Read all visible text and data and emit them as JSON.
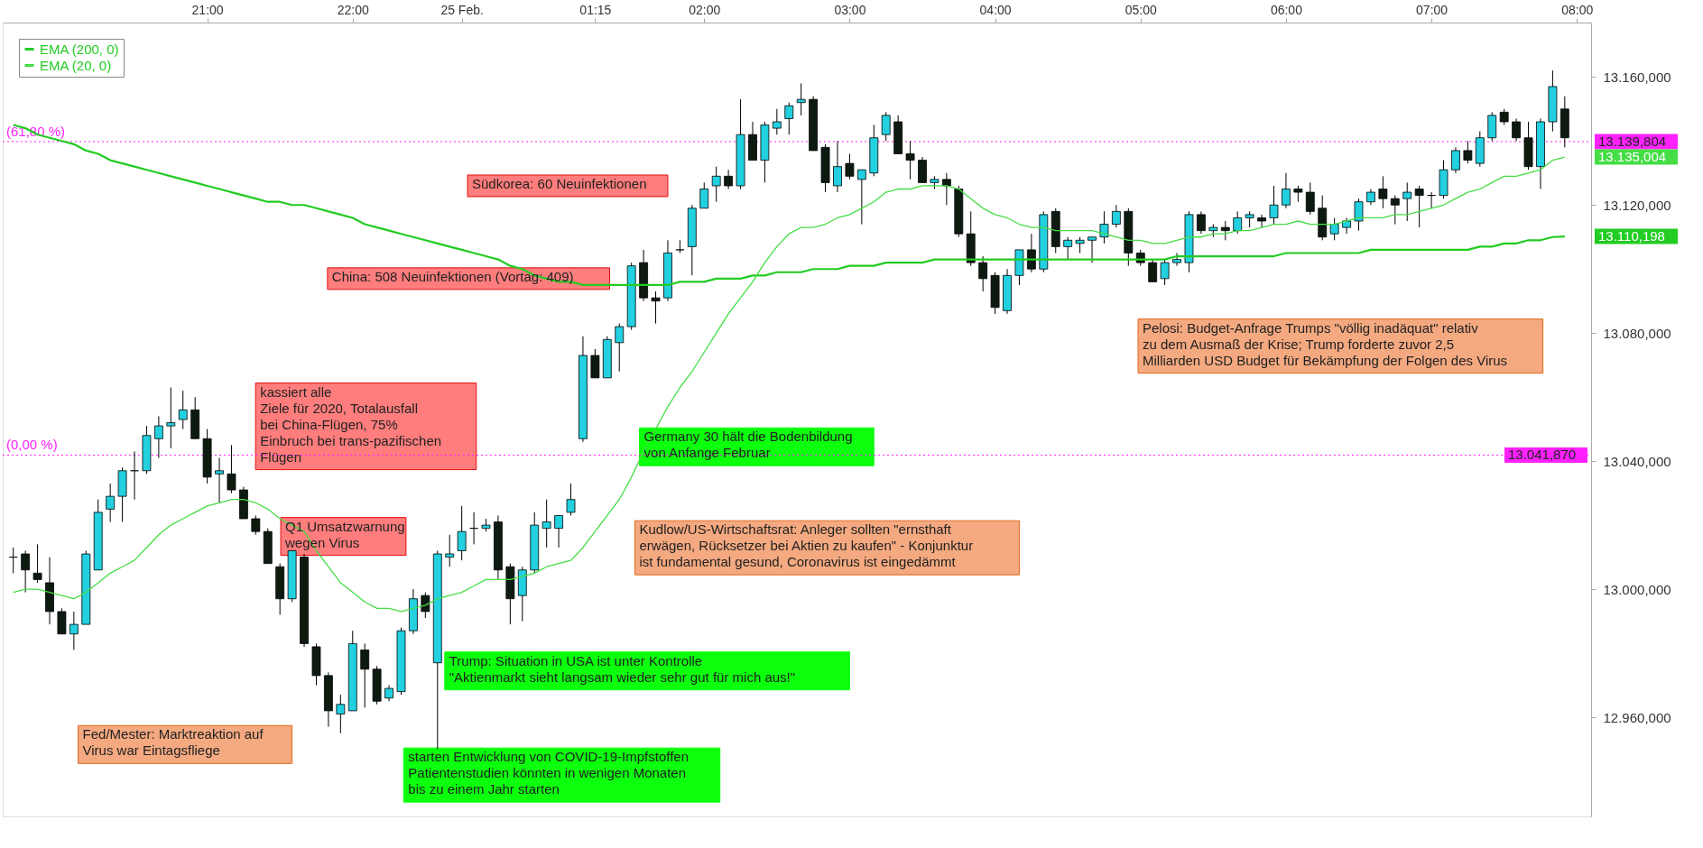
{
  "chart_data": {
    "type": "candlestick",
    "categories": [
      null,
      null,
      null,
      null,
      null,
      null,
      null,
      null,
      null,
      null,
      null,
      null,
      null,
      null,
      null,
      null,
      "21:00",
      null,
      null,
      null,
      null,
      null,
      null,
      null,
      null,
      null,
      null,
      null,
      "22:00",
      null,
      null,
      null,
      null,
      null,
      null,
      null,
      null,
      "25 Feb.",
      null,
      null,
      null,
      null,
      null,
      null,
      null,
      null,
      null,
      null,
      "01:15",
      null,
      null,
      null,
      null,
      null,
      null,
      null,
      null,
      "02:00",
      null,
      null,
      null,
      null,
      null,
      null,
      null,
      null,
      null,
      null,
      null,
      "03:00",
      null,
      null,
      null,
      null,
      null,
      null,
      null,
      null,
      null,
      null,
      null,
      "04:00",
      null,
      null,
      null,
      null,
      null,
      null,
      null,
      null,
      null,
      null,
      null,
      "05:00",
      null,
      null,
      null,
      null,
      null,
      null,
      null,
      null,
      null,
      null,
      null,
      "06:00",
      null,
      null,
      null,
      null,
      null,
      null,
      null,
      null,
      null,
      null,
      null,
      "07:00",
      null,
      null,
      null,
      null,
      null,
      null,
      null,
      null,
      null,
      null,
      null,
      "08:00"
    ],
    "ohlc": [
      [
        13010,
        13013,
        13005,
        13010
      ],
      [
        13011,
        13012,
        12999,
        13006
      ],
      [
        13005,
        13014,
        13002,
        13003
      ],
      [
        13002,
        13010,
        12989,
        12993
      ],
      [
        12993,
        12994,
        12986,
        12986
      ],
      [
        12986,
        12993,
        12981,
        12989
      ],
      [
        12989,
        13012,
        12989,
        13011
      ],
      [
        13006,
        13028,
        13006,
        13024
      ],
      [
        13025,
        13033,
        13021,
        13029
      ],
      [
        13029,
        13038,
        13021,
        13037
      ],
      [
        13037,
        13043,
        13028,
        13037
      ],
      [
        13037,
        13051,
        13036,
        13048
      ],
      [
        13047,
        13054,
        13041,
        13051
      ],
      [
        13051,
        13063,
        13044,
        13052
      ],
      [
        13053,
        13062,
        13050,
        13056
      ],
      [
        13056,
        13060,
        13047,
        13047
      ],
      [
        13047,
        13050,
        13033,
        13035
      ],
      [
        13036,
        13041,
        13027,
        13037
      ],
      [
        13036,
        13045,
        13030,
        13031
      ],
      [
        13031,
        13032,
        13022,
        13022
      ],
      [
        13022,
        13023,
        13017,
        13018
      ],
      [
        13018,
        13019,
        13008,
        13008
      ],
      [
        13007,
        13008,
        12992,
        12997
      ],
      [
        12997,
        13012,
        12996,
        13012
      ],
      [
        13010,
        13011,
        12982,
        12983
      ],
      [
        12982,
        12983,
        12970,
        12973
      ],
      [
        12973,
        12974,
        12957,
        12962
      ],
      [
        12961,
        12967,
        12955,
        12964
      ],
      [
        12962,
        12987,
        12962,
        12983
      ],
      [
        12981,
        12983,
        12963,
        12975
      ],
      [
        12975,
        12976,
        12964,
        12965
      ],
      [
        12966,
        12970,
        12965,
        12969
      ],
      [
        12968,
        12988,
        12967,
        12987
      ],
      [
        12987,
        13000,
        12986,
        12997
      ],
      [
        12998,
        12999,
        12991,
        12993
      ],
      [
        12977,
        13012,
        12950,
        13011
      ],
      [
        13010,
        13017,
        13007,
        13011
      ],
      [
        13012,
        13026,
        13009,
        13018
      ],
      [
        13019,
        13024,
        13014,
        13019
      ],
      [
        13019,
        13022,
        13018,
        13020
      ],
      [
        13021,
        13023,
        13003,
        13006
      ],
      [
        13007,
        13008,
        12989,
        12997
      ],
      [
        12998,
        13007,
        12990,
        13006
      ],
      [
        13006,
        13024,
        13005,
        13020
      ],
      [
        13019,
        13028,
        13013,
        13021
      ],
      [
        13019,
        13023,
        13013,
        13023
      ],
      [
        13024,
        13033,
        13023,
        13028
      ],
      [
        13047,
        13079,
        13046,
        13073
      ],
      [
        13073,
        13075,
        13066,
        13066
      ],
      [
        13066,
        13079,
        13066,
        13078
      ],
      [
        13077,
        13083,
        13068,
        13082
      ],
      [
        13082,
        13102,
        13081,
        13101
      ],
      [
        13102,
        13106,
        13090,
        13091
      ],
      [
        13091,
        13093,
        13083,
        13090
      ],
      [
        13091,
        13109,
        13090,
        13105
      ],
      [
        13106,
        13109,
        13105,
        13106
      ],
      [
        13107,
        13120,
        13098,
        13119
      ],
      [
        13119,
        13127,
        13119,
        13125
      ],
      [
        13126,
        13132,
        13121,
        13129
      ],
      [
        13129,
        13131,
        13125,
        13126
      ],
      [
        13126,
        13153,
        13125,
        13142
      ],
      [
        13142,
        13146,
        13134,
        13134
      ],
      [
        13134,
        13146,
        13127,
        13145
      ],
      [
        13144,
        13150,
        13142,
        13146
      ],
      [
        13147,
        13152,
        13142,
        13151
      ],
      [
        13152,
        13158,
        13148,
        13153
      ],
      [
        13153,
        13154,
        13137,
        13137
      ],
      [
        13138,
        13139,
        13124,
        13127
      ],
      [
        13126,
        13140,
        13124,
        13132
      ],
      [
        13133,
        13136,
        13128,
        13129
      ],
      [
        13128,
        13131,
        13114,
        13131
      ],
      [
        13130,
        13145,
        13129,
        13141
      ],
      [
        13142,
        13149,
        13140,
        13148
      ],
      [
        13146,
        13148,
        13136,
        13136
      ],
      [
        13136,
        13140,
        13128,
        13134
      ],
      [
        13134,
        13135,
        13127,
        13127
      ],
      [
        13127,
        13129,
        13125,
        13128
      ],
      [
        13128,
        13130,
        13120,
        13126
      ],
      [
        13125,
        13126,
        13110,
        13111
      ],
      [
        13111,
        13118,
        13101,
        13102
      ],
      [
        13102,
        13104,
        13093,
        13097
      ],
      [
        13098,
        13099,
        13086,
        13088
      ],
      [
        13087,
        13100,
        13086,
        13098
      ],
      [
        13098,
        13106,
        13095,
        13106
      ],
      [
        13106,
        13111,
        13099,
        13100
      ],
      [
        13100,
        13118,
        13099,
        13117
      ],
      [
        13118,
        13119,
        13105,
        13107
      ],
      [
        13107,
        13110,
        13103,
        13109
      ],
      [
        13108,
        13110,
        13105,
        13109
      ],
      [
        13109,
        13110,
        13102,
        13110
      ],
      [
        13110,
        13118,
        13108,
        13114
      ],
      [
        13114,
        13120,
        13113,
        13118
      ],
      [
        13118,
        13119,
        13101,
        13105
      ],
      [
        13105,
        13106,
        13101,
        13102
      ],
      [
        13102,
        13103,
        13096,
        13096
      ],
      [
        13097,
        13103,
        13095,
        13102
      ],
      [
        13102,
        13105,
        13101,
        13103
      ],
      [
        13102,
        13118,
        13099,
        13117
      ],
      [
        13117,
        13118,
        13111,
        13112
      ],
      [
        13112,
        13114,
        13110,
        13113
      ],
      [
        13113,
        13115,
        13109,
        13112
      ],
      [
        13112,
        13118,
        13111,
        13116
      ],
      [
        13116,
        13118,
        13113,
        13117
      ],
      [
        13116,
        13117,
        13113,
        13115
      ],
      [
        13116,
        13126,
        13114,
        13120
      ],
      [
        13120,
        13130,
        13119,
        13125
      ],
      [
        13125,
        13126,
        13121,
        13124
      ],
      [
        13124,
        13127,
        13117,
        13118
      ],
      [
        13119,
        13123,
        13109,
        13110
      ],
      [
        13111,
        13116,
        13109,
        13114
      ],
      [
        13113,
        13116,
        13111,
        13115
      ],
      [
        13115,
        13122,
        13112,
        13121
      ],
      [
        13121,
        13125,
        13120,
        13124
      ],
      [
        13125,
        13129,
        13119,
        13122
      ],
      [
        13122,
        13123,
        13114,
        13120
      ],
      [
        13122,
        13127,
        13115,
        13124
      ],
      [
        13125,
        13126,
        13113,
        13123
      ],
      [
        13123,
        13124,
        13119,
        13123
      ],
      [
        13123,
        13134,
        13122,
        13131
      ],
      [
        13131,
        13138,
        13130,
        13137
      ],
      [
        13137,
        13140,
        13133,
        13134
      ],
      [
        13133,
        13143,
        13132,
        13141
      ],
      [
        13141,
        13149,
        13140,
        13148
      ],
      [
        13149,
        13150,
        13145,
        13146
      ],
      [
        13146,
        13147,
        13140,
        13141
      ],
      [
        13141,
        13146,
        13131,
        13132
      ],
      [
        13132,
        13147,
        13125,
        13146
      ],
      [
        13146,
        13162,
        13143,
        13157
      ],
      [
        13150,
        13154,
        13138,
        13141
      ],
      null
    ],
    "series": [
      {
        "name": "EMA (200, 0)",
        "color": "#22cc22",
        "type": "line",
        "values": [
          13145,
          13144,
          13142,
          13141,
          13140,
          13139,
          13137,
          13136,
          13134,
          13133,
          13132,
          13131,
          13130,
          13129,
          13128,
          13127,
          13126,
          13125,
          13124,
          13123,
          13122,
          13121,
          13121,
          13120,
          13120,
          13119,
          13118,
          13117,
          13116,
          13114,
          13113,
          13112,
          13111,
          13110,
          13109,
          13108,
          13107,
          13106,
          13105,
          13104,
          13103,
          13101,
          13100,
          13098,
          13097,
          13096,
          13096,
          13095,
          13095,
          13095,
          13095,
          13095,
          13095,
          13095,
          13095,
          13096,
          13096,
          13096,
          13097,
          13097,
          13097,
          13098,
          13098,
          13099,
          13099,
          13099,
          13100,
          13100,
          13100,
          13101,
          13101,
          13101,
          13102,
          13102,
          13102,
          13102,
          13103,
          13103,
          13103,
          13103,
          13103,
          13103,
          13103,
          13103,
          13103,
          13103,
          13103,
          13103,
          13103,
          13103,
          13103,
          13103,
          13103,
          13103,
          13103,
          13103,
          13104,
          13104,
          13104,
          13104,
          13104,
          13104,
          13104,
          13104,
          13104,
          13105,
          13105,
          13105,
          13105,
          13105,
          13105,
          13105,
          13106,
          13106,
          13106,
          13106,
          13106,
          13106,
          13106,
          13106,
          13106,
          13107,
          13107,
          13108,
          13108,
          13109,
          13109,
          13110,
          13110.198,
          null
        ]
      },
      {
        "name": "EMA (20, 0)",
        "color": "#44dd44",
        "type": "line",
        "values": [
          12999,
          13000,
          13000,
          12999,
          12998,
          12997,
          12999,
          13002,
          13005,
          13007,
          13009,
          13013,
          13017,
          13020,
          13022,
          13024,
          13026,
          13027,
          13028,
          13028,
          13027,
          13025,
          13022,
          13020,
          13018,
          13012,
          13007,
          13002,
          12999,
          12996,
          12994,
          12994,
          12993,
          12994,
          12995,
          12997,
          12998,
          12999,
          13001,
          13003,
          13003,
          13003,
          13004,
          13005,
          13007,
          13008,
          13009,
          13013,
          13018,
          13023,
          13028,
          13035,
          13043,
          13050,
          13057,
          13063,
          13068,
          13074,
          13080,
          13086,
          13091,
          13096,
          13102,
          13107,
          13111,
          13113,
          13113,
          13114,
          13116,
          13117,
          13119,
          13121,
          13124,
          13125,
          13125,
          13126,
          13126,
          13126,
          13125,
          13122,
          13119,
          13117,
          13116,
          13114,
          13113,
          13113,
          13112,
          13112,
          13112,
          13112,
          13111,
          13110,
          13109,
          13109,
          13108,
          13108,
          13109,
          13110,
          13110,
          13111,
          13111,
          13112,
          13112,
          13113,
          13114,
          13114,
          13115,
          13114,
          13114,
          13114,
          13115,
          13116,
          13116,
          13116,
          13117,
          13117,
          13118,
          13119,
          13120,
          13122,
          13124,
          13125,
          13127,
          13129,
          13129,
          13130,
          13131,
          13134,
          13135.004,
          null
        ]
      }
    ],
    "ylim": [
      12929,
      13177
    ],
    "yticks": [
      {
        "value": 12960,
        "label": "12.960,000"
      },
      {
        "value": 13000,
        "label": "13.000,000"
      },
      {
        "value": 13040,
        "label": "13.040,000"
      },
      {
        "value": 13080,
        "label": "13.080,000"
      },
      {
        "value": 13120,
        "label": "13.120,000"
      },
      {
        "value": 13160,
        "label": "13.160,000"
      }
    ],
    "ref_lines": [
      {
        "axis": "y",
        "value": 13139.804,
        "label": "13.139,804",
        "color": "#ff22ff",
        "line_style": "dotted"
      },
      {
        "axis": "y",
        "value": 13041.87,
        "label": "13.041,870",
        "color": "#ff22ff",
        "line_style": "dotted"
      }
    ],
    "annotations": [
      "Südkorea: 60 Neuinfektionen",
      "China: 508 Neuinfektionen (Vortag: 409)",
      "kassiert alle\nZiele für 2020, Totalausfall\nbei China-Flügen, 75%\nEinbruch bei trans-pazifischen\nFlügen",
      "Q1 Umsatzwarnung\nwegen Virus",
      "Germany 30 hält die Bodenbildung\nvon Anfange Februar",
      "Kudlow/US-Wirtschaftsrat: Anleger sollten \"ernsthaft\nerwägen, Rücksetzer bei Aktien zu kaufen\" - Konjunktur\nist fundamental gesund, Coronavirus ist eingedämmt",
      "Trump: Situation in USA ist unter Kontrolle\n\"Aktienmarkt sieht langsam wieder sehr gut für mich aus!\"",
      "starten Entwicklung von COVID-19-Impfstoffen\nPatientenstudien könnten in wenigen Monaten\nbis zu einem Jahr starten",
      "Fed/Mester: Marktreaktion auf\nVirus war Eintagsfliege",
      "Pelosi: Budget-Anfrage Trumps \"völlig inadäquat\" relativ\nzu dem Ausmaß der Krise; Trump forderte zuvor 2,5\nMilliarden USD Budget für Bekämpfung der Folgen des Virus",
      "(61,80 %)",
      "(0,00 %)",
      "13.135,004",
      "13.110,198"
    ],
    "legend": "top left",
    "grid": false
  }
}
